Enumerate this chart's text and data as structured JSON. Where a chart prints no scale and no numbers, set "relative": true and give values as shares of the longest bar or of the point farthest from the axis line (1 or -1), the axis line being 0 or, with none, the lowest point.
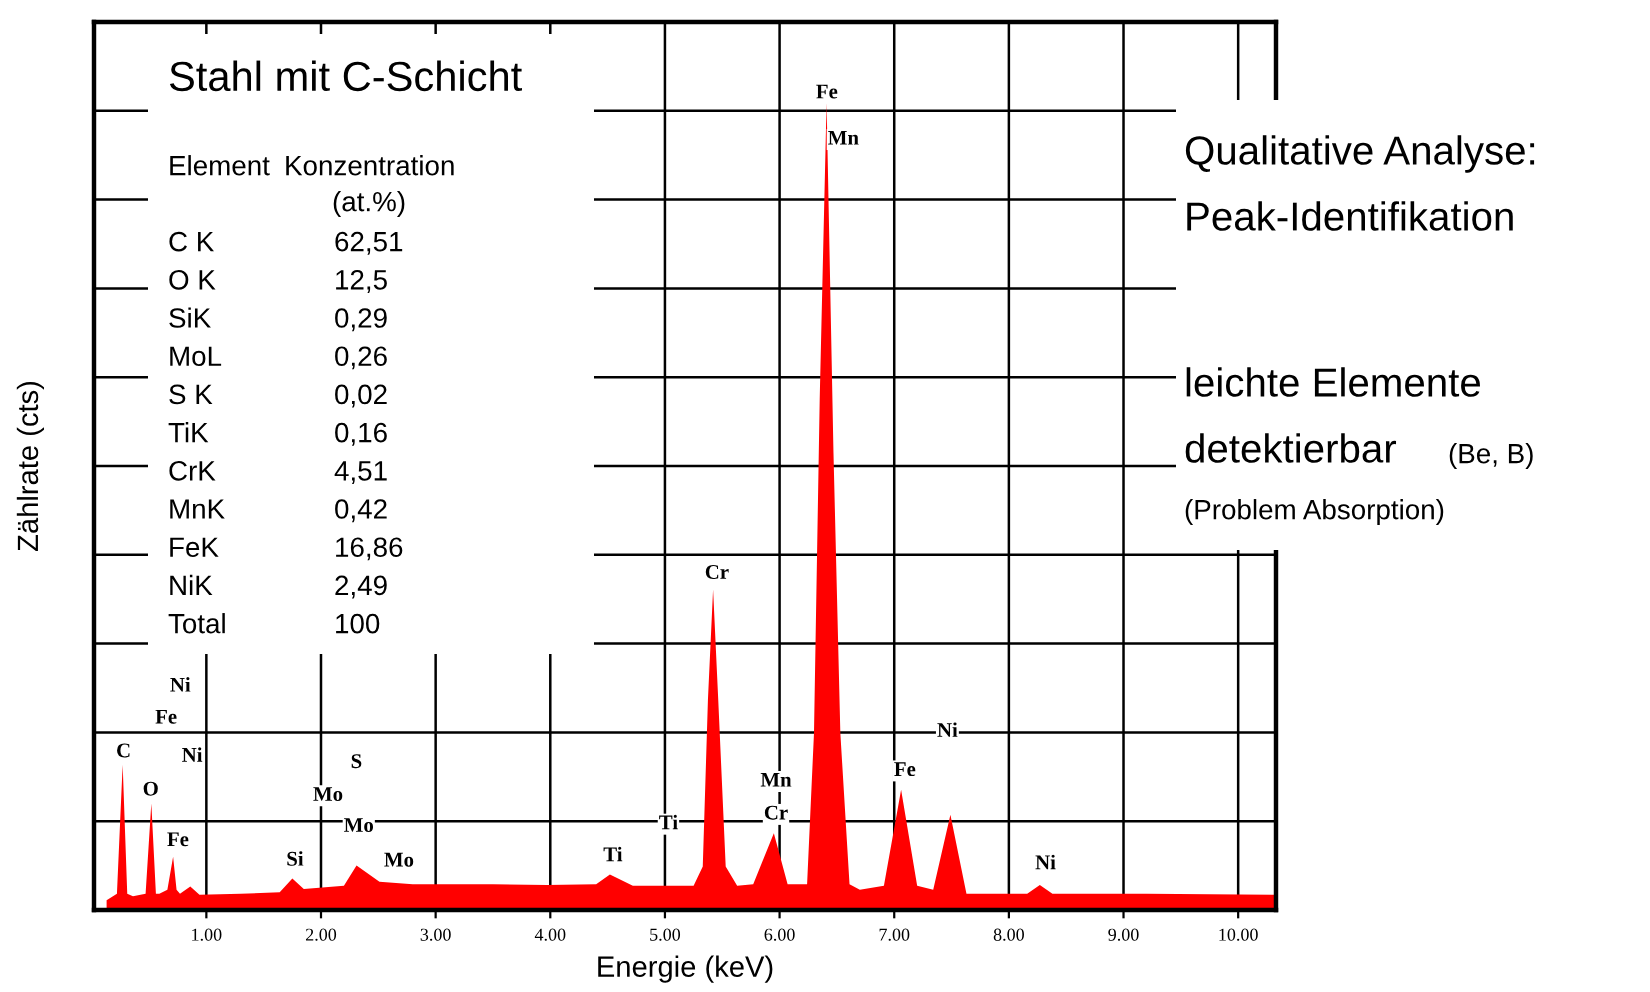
{
  "chart_data": {
    "type": "area",
    "relative": true,
    "xlabel": "Energie (keV)",
    "ylabel": "Zählrate (cts)",
    "xlim": [
      0.02,
      10.33
    ],
    "xticks": [
      {
        "value": 1,
        "label": "1.00"
      },
      {
        "value": 2,
        "label": "2.00"
      },
      {
        "value": 3,
        "label": "3.00"
      },
      {
        "value": 4,
        "label": "4.00"
      },
      {
        "value": 5,
        "label": "5.00"
      },
      {
        "value": 6,
        "label": "6.00"
      },
      {
        "value": 7,
        "label": "7.00"
      },
      {
        "value": 8,
        "label": "8.00"
      },
      {
        "value": 9,
        "label": "9.00"
      },
      {
        "value": 10,
        "label": "10.00"
      }
    ],
    "grid": true,
    "tick_labels": "x",
    "series": [
      {
        "color": "#ff0000",
        "x": [
          0.13,
          0.22,
          0.27,
          0.31,
          0.36,
          0.47,
          0.52,
          0.56,
          0.59,
          0.66,
          0.71,
          0.74,
          0.77,
          0.86,
          0.94,
          1.3,
          1.64,
          1.75,
          1.85,
          2.2,
          2.31,
          2.51,
          2.8,
          3.5,
          3.97,
          4.4,
          4.52,
          4.72,
          5.25,
          5.33,
          5.375,
          5.42,
          5.465,
          5.53,
          5.63,
          5.77,
          5.95,
          6.07,
          6.24,
          6.3,
          6.35,
          6.41,
          6.47,
          6.53,
          6.61,
          6.7,
          6.91,
          7.06,
          7.2,
          7.34,
          7.49,
          7.63,
          8.16,
          8.27,
          8.38,
          9.2,
          10.32
        ],
        "values": [
          0.012,
          0.02,
          0.18,
          0.02,
          0.017,
          0.02,
          0.132,
          0.02,
          0.02,
          0.025,
          0.066,
          0.025,
          0.02,
          0.029,
          0.019,
          0.02,
          0.022,
          0.039,
          0.026,
          0.03,
          0.055,
          0.035,
          0.032,
          0.032,
          0.031,
          0.032,
          0.044,
          0.03,
          0.03,
          0.054,
          0.26,
          0.397,
          0.26,
          0.054,
          0.03,
          0.032,
          0.095,
          0.032,
          0.032,
          0.219,
          0.633,
          1,
          0.567,
          0.219,
          0.032,
          0.025,
          0.03,
          0.149,
          0.03,
          0.025,
          0.118,
          0.02,
          0.02,
          0.031,
          0.02,
          0.02,
          0.019
        ]
      }
    ],
    "annotations": [
      "Fe",
      "Mn",
      "Cr",
      "Mn",
      "Cr",
      "Ti",
      "Ti",
      "Mo",
      "S",
      "Mo",
      "Mo",
      "Si",
      "C",
      "O",
      "Fe",
      "Ni",
      "Fe",
      "Ni",
      "Ni",
      "Fe",
      "Ni",
      "Stahl mit C-Schicht",
      "Element",
      "Konzentration",
      "(at.%)",
      "C K",
      "62,51",
      "O K",
      "12,5",
      "SiK",
      "0,29",
      "MoL",
      "0,26",
      "S K",
      "0,02",
      "TiK",
      "0,16",
      "CrK",
      "4,51",
      "MnK",
      "0,42",
      "FeK",
      "16,86",
      "NiK",
      "2,49",
      "Total",
      "100",
      "Qualitative Analyse:",
      "Peak-Identifikation",
      "leichte Elemente",
      "detektierbar",
      "(Be, B)",
      "(Problem Absorption)"
    ]
  }
}
